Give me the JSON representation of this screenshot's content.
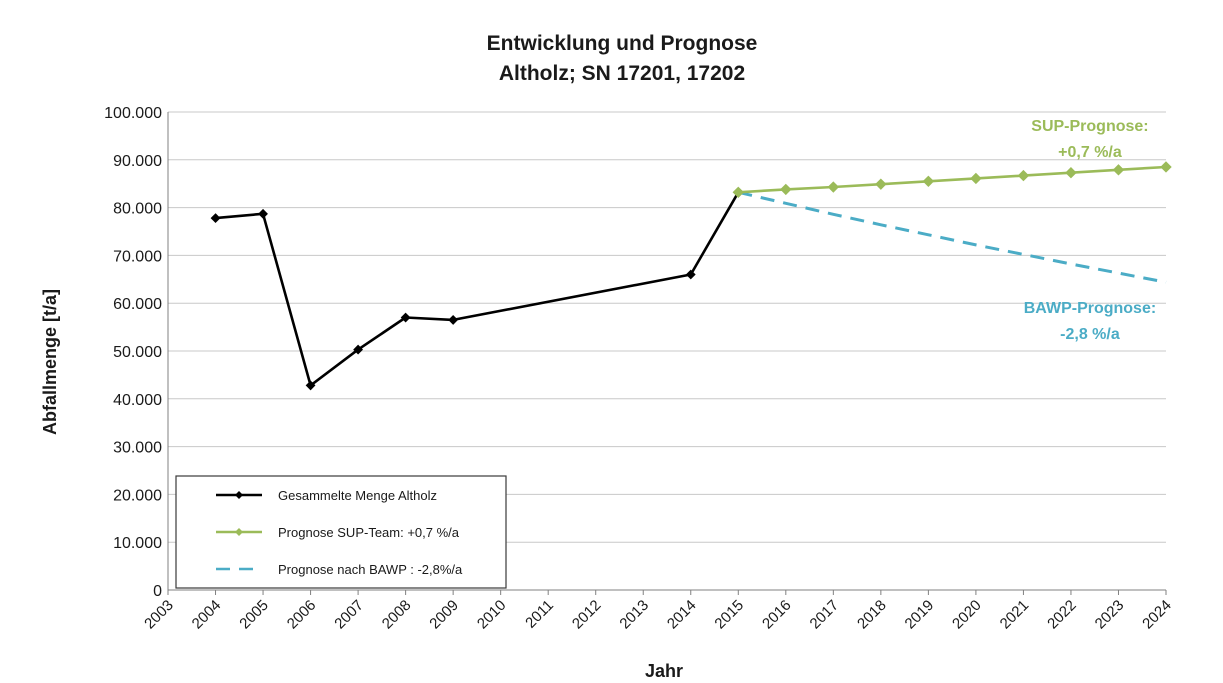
{
  "chart_data": {
    "type": "line",
    "title": [
      "Entwicklung und Prognose",
      "Altholz; SN 17201, 17202"
    ],
    "xlabel": "Jahr",
    "ylabel": "Abfallmenge [t/a]",
    "x_ticks": [
      "2003",
      "2004",
      "2005",
      "2006",
      "2007",
      "2008",
      "2009",
      "2010",
      "2011",
      "2012",
      "2013",
      "2014",
      "2015",
      "2016",
      "2017",
      "2018",
      "2019",
      "2020",
      "2021",
      "2022",
      "2023",
      "2024"
    ],
    "xlim": [
      2003,
      2024
    ],
    "ylim": [
      0,
      100000
    ],
    "y_ticks": [
      {
        "value": 0,
        "label": "0"
      },
      {
        "value": 10000,
        "label": "10.000"
      },
      {
        "value": 20000,
        "label": "20.000"
      },
      {
        "value": 30000,
        "label": "30.000"
      },
      {
        "value": 40000,
        "label": "40.000"
      },
      {
        "value": 50000,
        "label": "50.000"
      },
      {
        "value": 60000,
        "label": "60.000"
      },
      {
        "value": 70000,
        "label": "70.000"
      },
      {
        "value": 80000,
        "label": "80.000"
      },
      {
        "value": 90000,
        "label": "90.000"
      },
      {
        "value": 100000,
        "label": "100.000"
      }
    ],
    "grid": true,
    "legend_position": "bottom-left",
    "series": [
      {
        "name": "Gesammelte Menge Altholz",
        "color": "#000000",
        "style": "solid",
        "marker": "diamond",
        "points": [
          {
            "x": 2004,
            "y": 77800
          },
          {
            "x": 2005,
            "y": 78700
          },
          {
            "x": 2006,
            "y": 42800
          },
          {
            "x": 2007,
            "y": 50300
          },
          {
            "x": 2008,
            "y": 57000
          },
          {
            "x": 2009,
            "y": 56500
          },
          {
            "x": 2014,
            "y": 66000
          },
          {
            "x": 2015,
            "y": 83200
          }
        ]
      },
      {
        "name": "Prognose SUP-Team: +0,7 %/a",
        "color": "#9bbb59",
        "style": "solid",
        "marker": "diamond",
        "points": [
          {
            "x": 2015,
            "y": 83200
          },
          {
            "x": 2016,
            "y": 83800
          },
          {
            "x": 2017,
            "y": 84300
          },
          {
            "x": 2018,
            "y": 84900
          },
          {
            "x": 2019,
            "y": 85500
          },
          {
            "x": 2020,
            "y": 86100
          },
          {
            "x": 2021,
            "y": 86700
          },
          {
            "x": 2022,
            "y": 87300
          },
          {
            "x": 2023,
            "y": 87900
          },
          {
            "x": 2024,
            "y": 88500
          }
        ]
      },
      {
        "name": "Prognose nach BAWP : -2,8%/a",
        "color": "#4bacc6",
        "style": "dashed",
        "marker": "none",
        "points": [
          {
            "x": 2015,
            "y": 83200
          },
          {
            "x": 2016,
            "y": 80900
          },
          {
            "x": 2017,
            "y": 78600
          },
          {
            "x": 2018,
            "y": 76400
          },
          {
            "x": 2019,
            "y": 74300
          },
          {
            "x": 2020,
            "y": 72200
          },
          {
            "x": 2021,
            "y": 70200
          },
          {
            "x": 2022,
            "y": 68200
          },
          {
            "x": 2023,
            "y": 66300
          },
          {
            "x": 2024,
            "y": 64400
          }
        ]
      }
    ],
    "annotations": [
      {
        "lines": [
          "SUP-Prognose:",
          "+0,7 %/a"
        ],
        "color": "#9bbb59",
        "x": 2022.4,
        "y": 96000
      },
      {
        "lines": [
          "BAWP-Prognose:",
          "-2,8 %/a"
        ],
        "color": "#4bacc6",
        "x": 2022.4,
        "y": 58000
      }
    ]
  }
}
